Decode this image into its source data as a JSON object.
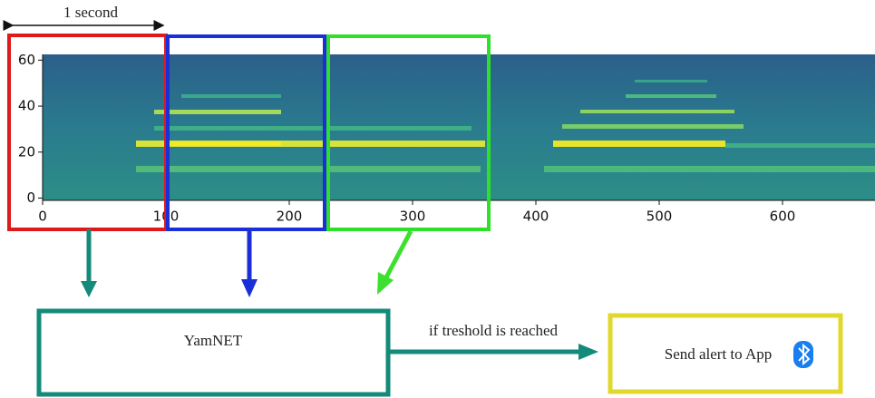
{
  "scale_label": "1 second",
  "spectrogram": {
    "xlim": [
      0,
      675
    ],
    "ylim": [
      -1,
      62.5
    ],
    "xticks": [
      0,
      100,
      200,
      300,
      400,
      500,
      600
    ],
    "yticks": [
      0,
      20,
      40,
      60
    ]
  },
  "model": {
    "label": "YamNET"
  },
  "condition": {
    "label": "if treshold is reached"
  },
  "output": {
    "label": "Send alert to App"
  }
}
